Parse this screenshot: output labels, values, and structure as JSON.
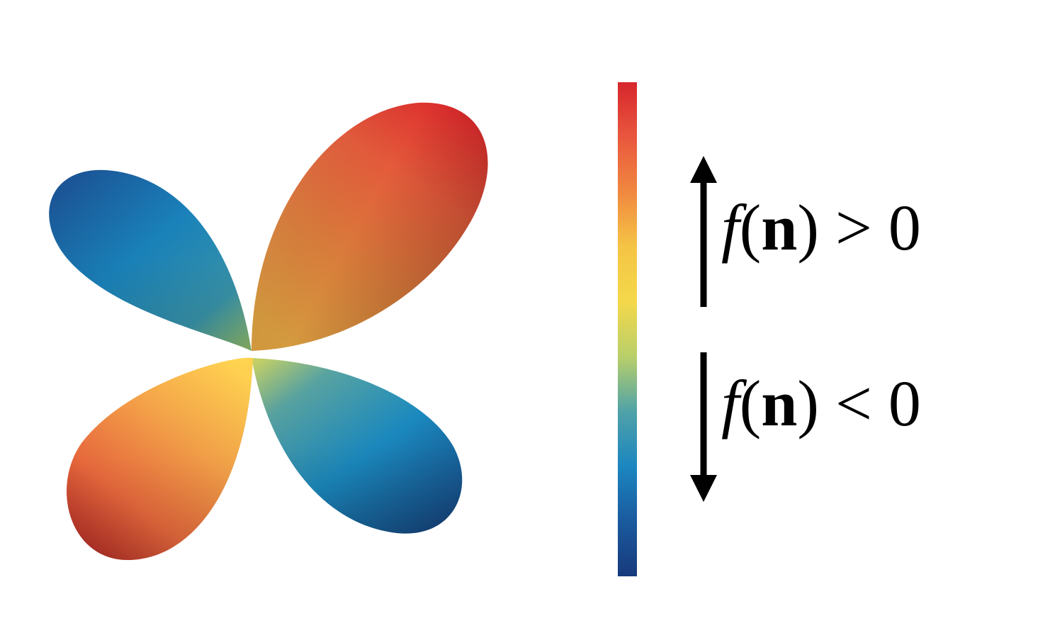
{
  "lobes": [
    {
      "name": "upper-right",
      "sign": "positive"
    },
    {
      "name": "lower-left",
      "sign": "positive"
    },
    {
      "name": "upper-left",
      "sign": "negative"
    },
    {
      "name": "lower-right",
      "sign": "negative"
    }
  ],
  "colorbar": {
    "stops": [
      "#d7262c",
      "#e9573e",
      "#f0883f",
      "#f5c445",
      "#f4d84a",
      "#b8cf6a",
      "#4fa2a8",
      "#1b86c0",
      "#1a5a9e",
      "#173a7c"
    ]
  },
  "labels": {
    "positive": {
      "func": "f",
      "open": "(",
      "vec": "n",
      "close": ")",
      "relation": " > 0"
    },
    "negative": {
      "func": "f",
      "open": "(",
      "vec": "n",
      "close": ")",
      "relation": " < 0"
    }
  }
}
